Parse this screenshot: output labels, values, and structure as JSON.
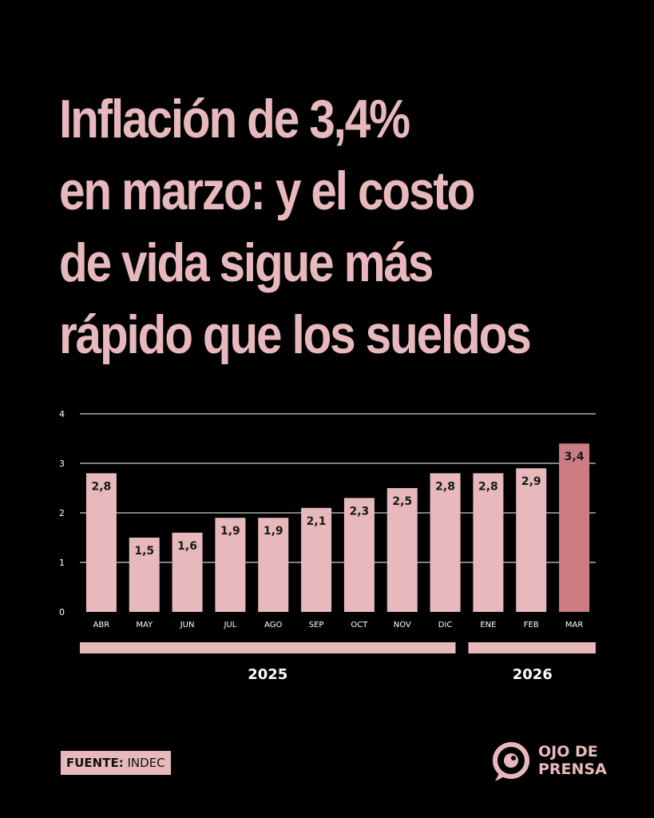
{
  "headline": {
    "lines": [
      "Inflación de 3,4%",
      "en marzo: y el costo",
      "de vida sigue más",
      "rápido que los sueldos"
    ]
  },
  "chart_data": {
    "type": "bar",
    "categories": [
      "ABR",
      "MAY",
      "JUN",
      "JUL",
      "AGO",
      "SEP",
      "OCT",
      "NOV",
      "DIC",
      "ENE",
      "FEB",
      "MAR"
    ],
    "values": [
      2.8,
      1.5,
      1.6,
      1.9,
      1.9,
      2.1,
      2.3,
      2.5,
      2.8,
      2.8,
      2.9,
      3.4
    ],
    "value_labels": [
      "2,8",
      "1,5",
      "1,6",
      "1,9",
      "1,9",
      "2,1",
      "2,3",
      "2,5",
      "2,8",
      "2,8",
      "2,9",
      "3,4"
    ],
    "highlight_index": 11,
    "yticks": [
      "0",
      "1",
      "2",
      "3",
      "4"
    ],
    "ylim": [
      0,
      4
    ],
    "grid": true,
    "year_groups": [
      {
        "label": "2025",
        "start": 0,
        "end": 8
      },
      {
        "label": "2026",
        "start": 9,
        "end": 11
      }
    ],
    "colors": {
      "bar": "#E8B9BC",
      "highlight": "#CD7C84",
      "grid": "#FFFFFF"
    }
  },
  "footer": {
    "source_label": "FUENTE:",
    "source_value": "INDEC"
  },
  "logo": {
    "line1": "OJO DE",
    "line2": "PRENSA"
  }
}
